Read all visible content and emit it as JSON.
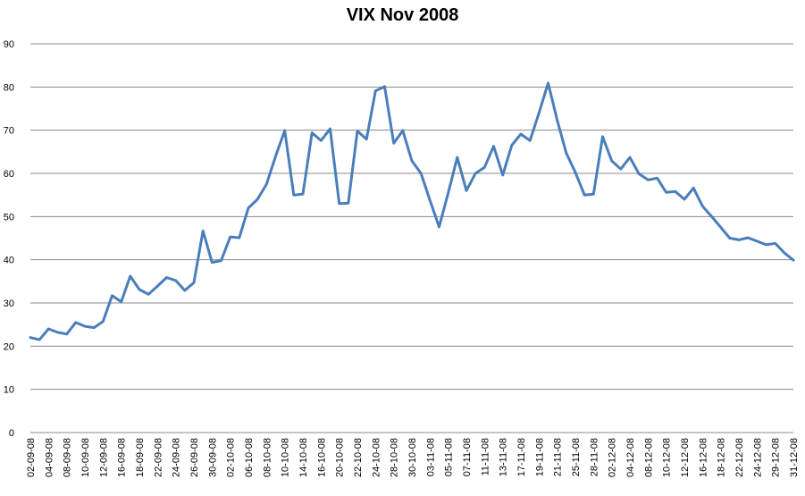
{
  "chart_data": {
    "type": "line",
    "title": "VIX Nov 2008",
    "xlabel": "",
    "ylabel": "",
    "ylim": [
      0,
      90
    ],
    "yticks": [
      0,
      10,
      20,
      30,
      40,
      50,
      60,
      70,
      80,
      90
    ],
    "grid": true,
    "legend": "none",
    "colors": {
      "line": "#4a7ebb",
      "grid": "#888888"
    },
    "x_tick_labels": [
      "02-09-08",
      "04-09-08",
      "08-09-08",
      "10-09-08",
      "12-09-08",
      "16-09-08",
      "18-09-08",
      "22-09-08",
      "24-09-08",
      "26-09-08",
      "30-09-08",
      "02-10-08",
      "06-10-08",
      "08-10-08",
      "10-10-08",
      "14-10-08",
      "16-10-08",
      "20-10-08",
      "22-10-08",
      "24-10-08",
      "28-10-08",
      "30-10-08",
      "03-11-08",
      "05-11-08",
      "07-11-08",
      "11-11-08",
      "13-11-08",
      "17-11-08",
      "19-11-08",
      "21-11-08",
      "25-11-08",
      "28-11-08",
      "02-12-08",
      "04-12-08",
      "08-12-08",
      "10-12-08",
      "12-12-08",
      "16-12-08",
      "18-12-08",
      "22-12-08",
      "24-12-08",
      "29-12-08",
      "31-12-08"
    ],
    "values": [
      22,
      21.5,
      24,
      23.2,
      22.8,
      25.5,
      24.6,
      24.3,
      25.7,
      31.7,
      30.3,
      36.2,
      33.1,
      32,
      33.9,
      35.9,
      35.2,
      32.9,
      34.7,
      46.7,
      39.4,
      39.8,
      45.3,
      45.1,
      52,
      54,
      57.5,
      64,
      69.9,
      55,
      55.2,
      69.4,
      67.6,
      70.3,
      53,
      53.1,
      69.8,
      67.9,
      79.1,
      80.1,
      67,
      69.9,
      62.9,
      60,
      53.7,
      47.6,
      55.5,
      63.7,
      56,
      60,
      61.4,
      66.3,
      59.6,
      66.5,
      69.1,
      67.6,
      74,
      80.9,
      72.3,
      64.7,
      60.2,
      55,
      55.2,
      68.5,
      62.9,
      61,
      63.7,
      59.9,
      58.5,
      58.9,
      55.6,
      55.8,
      54,
      56.6,
      52.4,
      50,
      47.5,
      45,
      44.6,
      45.1,
      44.3,
      43.5,
      43.8,
      41.6,
      39.9
    ]
  }
}
